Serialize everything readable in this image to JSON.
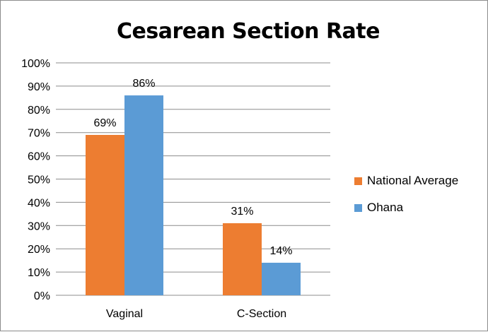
{
  "chart_data": {
    "type": "bar",
    "title": "Cesarean Section Rate",
    "categories": [
      "Vaginal",
      "C-Section"
    ],
    "series": [
      {
        "name": "National Average",
        "values": [
          69,
          31
        ],
        "labels": [
          "69%",
          "31%"
        ],
        "color": "#ed7d31"
      },
      {
        "name": "Ohana",
        "values": [
          86,
          14
        ],
        "labels": [
          "86%",
          "14%"
        ],
        "color": "#5b9bd5"
      }
    ],
    "ylim": [
      0,
      100
    ],
    "yticks": [
      "0%",
      "10%",
      "20%",
      "30%",
      "40%",
      "50%",
      "60%",
      "70%",
      "80%",
      "90%",
      "100%"
    ],
    "grid": true,
    "legend": "right"
  }
}
